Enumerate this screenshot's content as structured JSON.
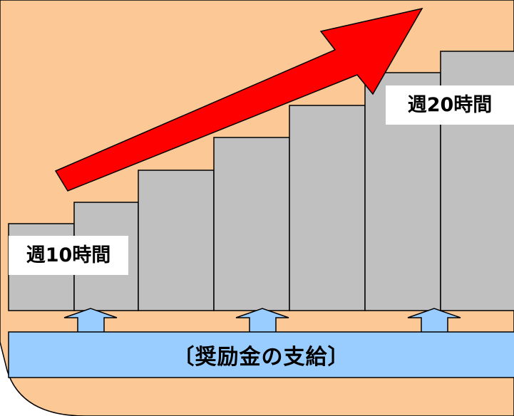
{
  "diagram": {
    "label_start": "週10時間",
    "label_end": "週20時間",
    "subsidy_label": "〔奨励金の支給〕"
  },
  "colors": {
    "background_panel": "#FCC996",
    "step_fill": "#C0C0C0",
    "step_stroke": "#000000",
    "arrow_red": "#FF0000",
    "subsidy_bar": "#99CCFF",
    "support_arrow": "#99CCFF"
  },
  "steps": [
    1,
    2,
    3,
    4,
    5,
    6,
    7
  ],
  "support_arrows": [
    1,
    2,
    3
  ]
}
